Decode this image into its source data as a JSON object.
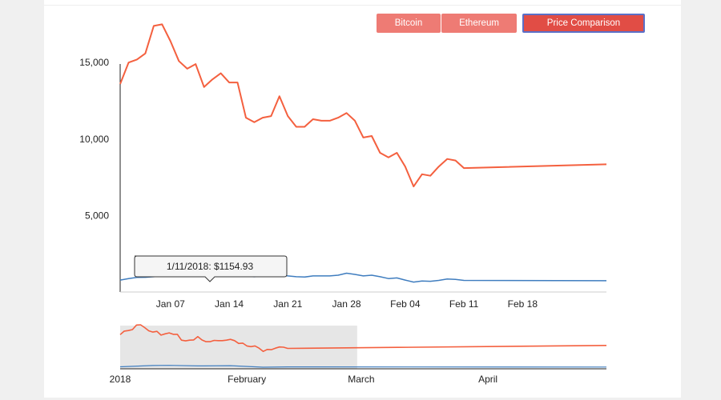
{
  "buttons": {
    "bitcoin": "Bitcoin",
    "ethereum": "Ethereum",
    "price_comparison": "Price Comparison"
  },
  "tooltip": {
    "text": "1/11/2018: $1154.93"
  },
  "colors": {
    "bitcoin_line": "#f4603f",
    "ethereum_line": "#3f7dbf",
    "button": "#ee7b74",
    "button_active": "#e14d45"
  },
  "chart_data": [
    {
      "type": "line",
      "title": "",
      "xlabel": "",
      "ylabel": "",
      "x_ticks": [
        "Jan 07",
        "Jan 14",
        "Jan 21",
        "Jan 28",
        "Feb 04",
        "Feb 11",
        "Feb 18"
      ],
      "y_ticks": [
        "5,000",
        "10,000",
        "15,000"
      ],
      "ylim": [
        0,
        17000
      ],
      "x_range": [
        "2018-01-01",
        "2018-02-28"
      ],
      "grid": false,
      "series": [
        {
          "color": "#f4603f",
          "points": [
            [
              "2018-01-01",
              13600
            ],
            [
              "2018-01-02",
              15000
            ],
            [
              "2018-01-03",
              15200
            ],
            [
              "2018-01-04",
              15600
            ],
            [
              "2018-01-05",
              17400
            ],
            [
              "2018-01-06",
              17500
            ],
            [
              "2018-01-07",
              16400
            ],
            [
              "2018-01-08",
              15100
            ],
            [
              "2018-01-09",
              14600
            ],
            [
              "2018-01-10",
              14900
            ],
            [
              "2018-01-11",
              13400
            ],
            [
              "2018-01-12",
              13900
            ],
            [
              "2018-01-13",
              14300
            ],
            [
              "2018-01-14",
              13700
            ],
            [
              "2018-01-15",
              13700
            ],
            [
              "2018-01-16",
              11400
            ],
            [
              "2018-01-17",
              11100
            ],
            [
              "2018-01-18",
              11400
            ],
            [
              "2018-01-19",
              11500
            ],
            [
              "2018-01-20",
              12800
            ],
            [
              "2018-01-21",
              11500
            ],
            [
              "2018-01-22",
              10800
            ],
            [
              "2018-01-23",
              10800
            ],
            [
              "2018-01-24",
              11300
            ],
            [
              "2018-01-25",
              11200
            ],
            [
              "2018-01-26",
              11200
            ],
            [
              "2018-01-27",
              11400
            ],
            [
              "2018-01-28",
              11700
            ],
            [
              "2018-01-29",
              11200
            ],
            [
              "2018-01-30",
              10100
            ],
            [
              "2018-01-31",
              10200
            ],
            [
              "2018-02-01",
              9100
            ],
            [
              "2018-02-02",
              8800
            ],
            [
              "2018-02-03",
              9100
            ],
            [
              "2018-02-04",
              8200
            ],
            [
              "2018-02-05",
              6900
            ],
            [
              "2018-02-06",
              7700
            ],
            [
              "2018-02-07",
              7600
            ],
            [
              "2018-02-08",
              8200
            ],
            [
              "2018-02-09",
              8700
            ],
            [
              "2018-02-10",
              8600
            ],
            [
              "2018-02-11",
              8100
            ],
            [
              "2018-02-28",
              8350
            ]
          ]
        },
        {
          "color": "#3f7dbf",
          "points": [
            [
              "2018-01-01",
              780
            ],
            [
              "2018-01-02",
              880
            ],
            [
              "2018-01-03",
              950
            ],
            [
              "2018-01-04",
              960
            ],
            [
              "2018-01-05",
              1000
            ],
            [
              "2018-01-06",
              1050
            ],
            [
              "2018-01-07",
              1150
            ],
            [
              "2018-01-08",
              1140
            ],
            [
              "2018-01-09",
              1300
            ],
            [
              "2018-01-10",
              1250
            ],
            [
              "2018-01-11",
              1155
            ],
            [
              "2018-01-12",
              1270
            ],
            [
              "2018-01-13",
              1380
            ],
            [
              "2018-01-14",
              1350
            ],
            [
              "2018-01-15",
              1290
            ],
            [
              "2018-01-16",
              1030
            ],
            [
              "2018-01-17",
              1000
            ],
            [
              "2018-01-18",
              1030
            ],
            [
              "2018-01-19",
              1030
            ],
            [
              "2018-01-20",
              1150
            ],
            [
              "2018-01-21",
              1050
            ],
            [
              "2018-01-22",
              1000
            ],
            [
              "2018-01-23",
              980
            ],
            [
              "2018-01-24",
              1050
            ],
            [
              "2018-01-25",
              1050
            ],
            [
              "2018-01-26",
              1050
            ],
            [
              "2018-01-27",
              1100
            ],
            [
              "2018-01-28",
              1230
            ],
            [
              "2018-01-29",
              1150
            ],
            [
              "2018-01-30",
              1050
            ],
            [
              "2018-01-31",
              1100
            ],
            [
              "2018-02-01",
              1000
            ],
            [
              "2018-02-02",
              880
            ],
            [
              "2018-02-03",
              920
            ],
            [
              "2018-02-04",
              780
            ],
            [
              "2018-02-05",
              650
            ],
            [
              "2018-02-06",
              720
            ],
            [
              "2018-02-07",
              700
            ],
            [
              "2018-02-08",
              760
            ],
            [
              "2018-02-09",
              850
            ],
            [
              "2018-02-10",
              820
            ],
            [
              "2018-02-11",
              760
            ],
            [
              "2018-02-28",
              740
            ]
          ]
        }
      ]
    },
    {
      "type": "line",
      "title": "",
      "x_ticks": [
        "2018",
        "February",
        "March",
        "April"
      ],
      "x_range": [
        "2018-01-01",
        "2018-04-30"
      ],
      "selected_range": [
        "2018-01-01",
        "2018-02-28"
      ],
      "ylim": [
        0,
        17500
      ],
      "series": [
        {
          "color": "#f4603f",
          "points": [
            [
              "2018-01-01",
              13600
            ],
            [
              "2018-01-02",
              15000
            ],
            [
              "2018-01-03",
              15200
            ],
            [
              "2018-01-04",
              15600
            ],
            [
              "2018-01-05",
              17400
            ],
            [
              "2018-01-06",
              17500
            ],
            [
              "2018-01-07",
              16400
            ],
            [
              "2018-01-08",
              15100
            ],
            [
              "2018-01-09",
              14600
            ],
            [
              "2018-01-10",
              14900
            ],
            [
              "2018-01-11",
              13400
            ],
            [
              "2018-01-12",
              13900
            ],
            [
              "2018-01-13",
              14300
            ],
            [
              "2018-01-14",
              13700
            ],
            [
              "2018-01-15",
              13700
            ],
            [
              "2018-01-16",
              11400
            ],
            [
              "2018-01-17",
              11100
            ],
            [
              "2018-01-18",
              11400
            ],
            [
              "2018-01-19",
              11500
            ],
            [
              "2018-01-20",
              12800
            ],
            [
              "2018-01-21",
              11500
            ],
            [
              "2018-01-22",
              10800
            ],
            [
              "2018-01-23",
              10800
            ],
            [
              "2018-01-24",
              11300
            ],
            [
              "2018-01-25",
              11200
            ],
            [
              "2018-01-26",
              11200
            ],
            [
              "2018-01-27",
              11400
            ],
            [
              "2018-01-28",
              11700
            ],
            [
              "2018-01-29",
              11200
            ],
            [
              "2018-01-30",
              10100
            ],
            [
              "2018-01-31",
              10200
            ],
            [
              "2018-02-01",
              9100
            ],
            [
              "2018-02-02",
              8800
            ],
            [
              "2018-02-03",
              9100
            ],
            [
              "2018-02-04",
              8200
            ],
            [
              "2018-02-05",
              6900
            ],
            [
              "2018-02-06",
              7700
            ],
            [
              "2018-02-07",
              7600
            ],
            [
              "2018-02-08",
              8200
            ],
            [
              "2018-02-09",
              8700
            ],
            [
              "2018-02-10",
              8600
            ],
            [
              "2018-02-11",
              8100
            ],
            [
              "2018-04-30",
              9300
            ]
          ]
        },
        {
          "color": "#3f7dbf",
          "points": [
            [
              "2018-01-01",
              780
            ],
            [
              "2018-01-09",
              1300
            ],
            [
              "2018-01-13",
              1380
            ],
            [
              "2018-01-20",
              1150
            ],
            [
              "2018-01-28",
              1230
            ],
            [
              "2018-02-05",
              650
            ],
            [
              "2018-02-11",
              760
            ],
            [
              "2018-04-30",
              700
            ]
          ]
        }
      ]
    }
  ]
}
